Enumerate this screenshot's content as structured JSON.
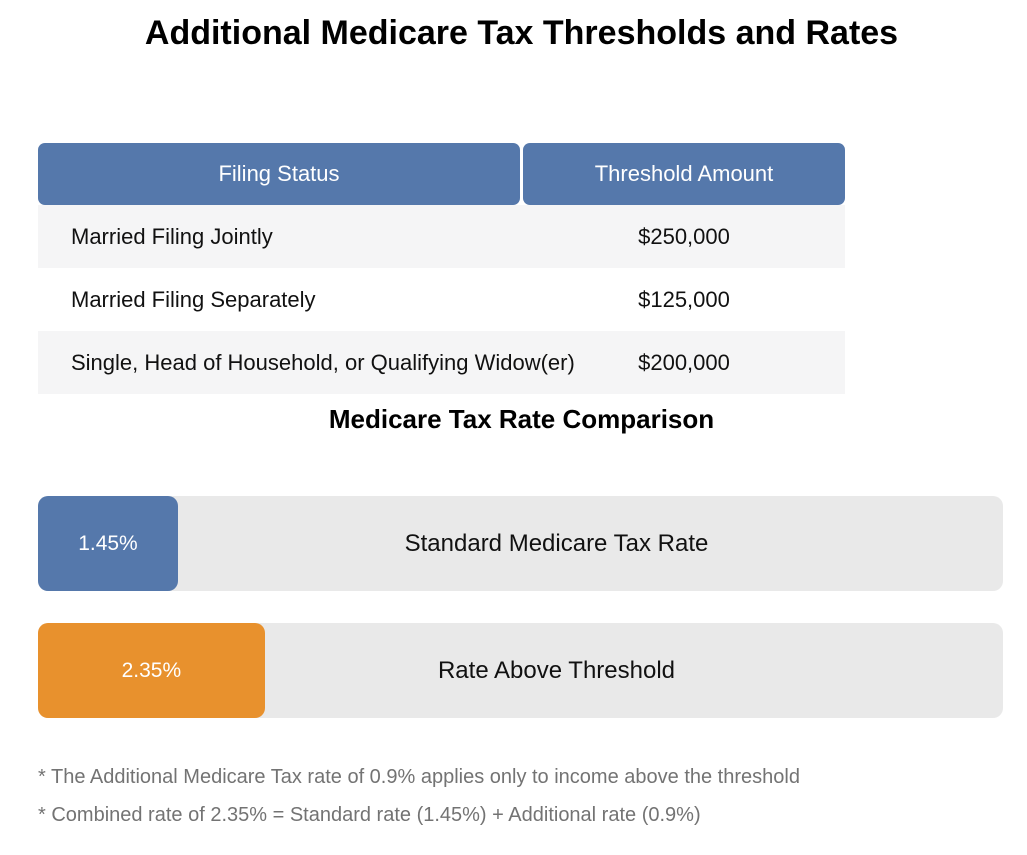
{
  "title": "Additional Medicare Tax Thresholds and Rates",
  "colors": {
    "header_blue": "#5578ab",
    "standard_rate_blue": "#5578ab",
    "above_threshold_orange": "#e8912d",
    "bar_track_gray": "#e9e9e9",
    "row_stripe_gray": "#f5f5f6",
    "footnote_gray": "#737373"
  },
  "chart_data": [
    {
      "type": "table",
      "columns": [
        "Filing Status",
        "Threshold Amount"
      ],
      "rows": [
        [
          "Married Filing Jointly",
          "$250,000"
        ],
        [
          "Married Filing Separately",
          "$125,000"
        ],
        [
          "Single, Head of Household, or Qualifying Widow(er)",
          "$200,000"
        ]
      ]
    },
    {
      "type": "bar",
      "title": "Medicare Tax Rate Comparison",
      "orientation": "horizontal",
      "categories": [
        "Standard Medicare Tax Rate",
        "Rate Above Threshold"
      ],
      "values": [
        1.45,
        2.35
      ],
      "value_labels": [
        "1.45%",
        "2.35%"
      ],
      "bar_colors": [
        "#5578ab",
        "#e8912d"
      ],
      "track_color": "#e9e9e9",
      "xlim": [
        0,
        10
      ],
      "unit": "%",
      "grid": false,
      "legend": "none"
    }
  ],
  "footnotes": [
    "* The Additional Medicare Tax rate of 0.9% applies only to income above the threshold",
    "* Combined rate of 2.35% = Standard rate (1.45%) + Additional rate (0.9%)"
  ]
}
